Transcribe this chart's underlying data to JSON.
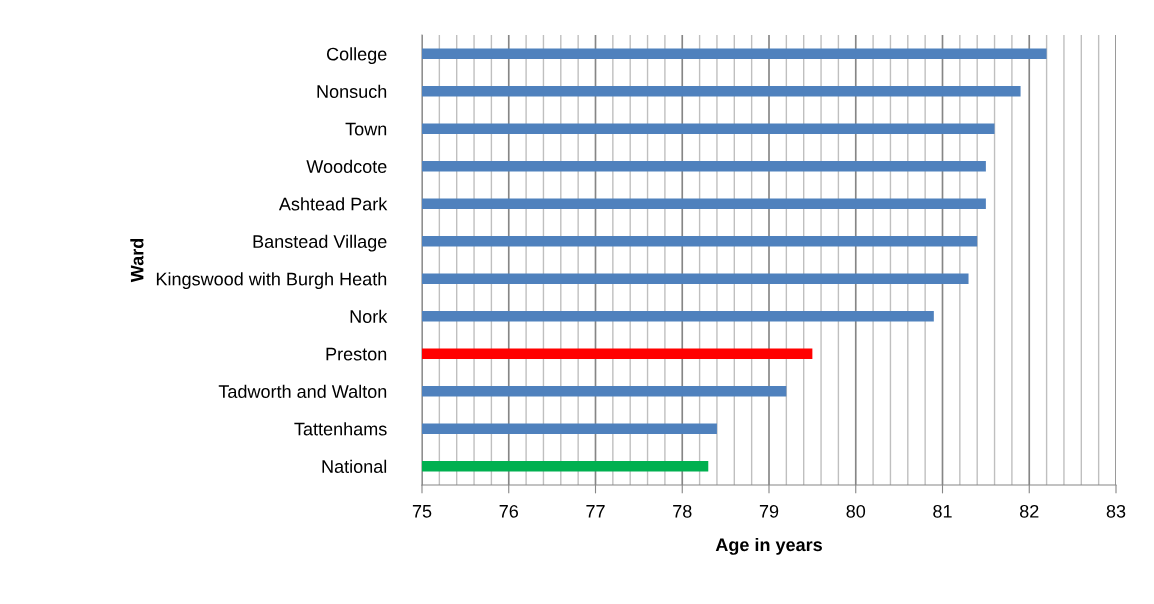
{
  "chart_data": {
    "type": "bar",
    "orientation": "horizontal",
    "xlabel": "Age in years",
    "ylabel": "Ward",
    "categories": [
      "College",
      "Nonsuch",
      "Town",
      "Woodcote",
      "Ashtead Park",
      "Banstead Village",
      "Kingswood with Burgh Heath",
      "Nork",
      "Preston",
      "Tadworth and Walton",
      "Tattenhams",
      "National"
    ],
    "values": [
      82.2,
      81.9,
      81.6,
      81.5,
      81.5,
      81.4,
      81.3,
      80.9,
      79.5,
      79.2,
      78.4,
      78.3
    ],
    "colors": [
      "#4f81bd",
      "#4f81bd",
      "#4f81bd",
      "#4f81bd",
      "#4f81bd",
      "#4f81bd",
      "#4f81bd",
      "#4f81bd",
      "#ff0000",
      "#4f81bd",
      "#4f81bd",
      "#00b050"
    ],
    "xlim": [
      75,
      83
    ],
    "xticks": [
      75,
      76,
      77,
      78,
      79,
      80,
      81,
      82,
      83
    ],
    "grid": "x"
  }
}
